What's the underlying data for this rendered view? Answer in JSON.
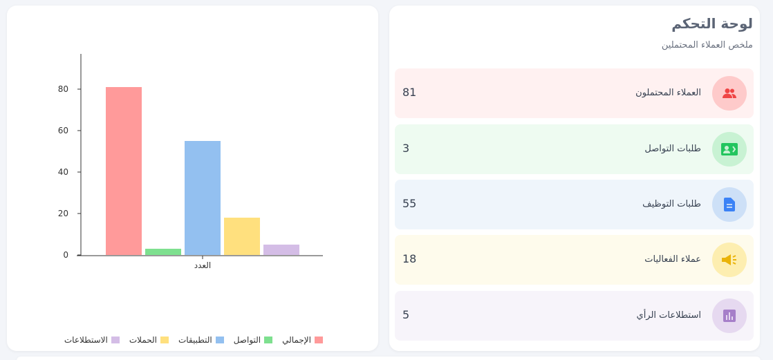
{
  "dashboard": {
    "title": "لوحة التحكم",
    "subtitle": "ملخص العملاء المحتملين",
    "stats": [
      {
        "label": "العملاء المحتملون",
        "count": "81",
        "bg": "#fff1f1",
        "icon_bg": "#fecaca",
        "icon_color": "#ef4444",
        "icon": "users-icon"
      },
      {
        "label": "طلبات التواصل",
        "count": "3",
        "bg": "#eefbf1",
        "icon_bg": "#c8f2d3",
        "icon_color": "#22c55e",
        "icon": "contact-card-icon"
      },
      {
        "label": "طلبات التوظيف",
        "count": "55",
        "bg": "#eff5fb",
        "icon_bg": "#cde0f7",
        "icon_color": "#3b82f6",
        "icon": "document-icon"
      },
      {
        "label": "عملاء الفعاليات",
        "count": "18",
        "bg": "#fefbec",
        "icon_bg": "#fdeeb0",
        "icon_color": "#eab308",
        "icon": "megaphone-icon"
      },
      {
        "label": "استطلاعات الرأي",
        "count": "5",
        "bg": "#f7f4fa",
        "icon_bg": "#e6d9f0",
        "icon_color": "#a67fc9",
        "icon": "poll-chart-icon"
      }
    ]
  },
  "chart_data": {
    "type": "bar",
    "categories": [
      "العدد"
    ],
    "series": [
      {
        "name": "الإجمالي",
        "values": [
          81
        ],
        "color": "#ff9a9a"
      },
      {
        "name": "التواصل",
        "values": [
          3
        ],
        "color": "#7ee08f"
      },
      {
        "name": "التطبيقات",
        "values": [
          55
        ],
        "color": "#93c0f0"
      },
      {
        "name": "الحملات",
        "values": [
          18
        ],
        "color": "#ffe07e"
      },
      {
        "name": "الاستطلاعات",
        "values": [
          5
        ],
        "color": "#d4bde6"
      }
    ],
    "yticks": [
      0,
      20,
      40,
      60,
      80
    ],
    "ylim": [
      0,
      97
    ],
    "legend_position": "bottom",
    "grid": false
  }
}
